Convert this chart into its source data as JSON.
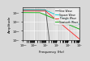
{
  "title": "",
  "xlabel": "Frequency (Hz)",
  "ylabel": "Amplitude",
  "xlim": [
    0.01,
    1000
  ],
  "ylim": [
    1e-07,
    1
  ],
  "background_color": "#d8d8d8",
  "grid_color": "#ffffff",
  "lines": [
    {
      "label": "Sine Wave",
      "color": "#555555",
      "style": "-",
      "flat_y": 0.35,
      "break_f": 1.0,
      "slope": -20
    },
    {
      "label": "Square Wave",
      "color": "#00cccc",
      "style": "-",
      "flat_y": 0.25,
      "break_f": 1.0,
      "slope": -1
    },
    {
      "label": "Triangle Wave",
      "color": "#ff2222",
      "style": "-",
      "flat_y": 0.18,
      "break_f": 1.0,
      "slope": -2
    },
    {
      "label": "Sawtooth Wave",
      "color": "#00aa00",
      "style": "-",
      "flat_y": 0.08,
      "break_f": 0.3,
      "slope": -1
    }
  ],
  "legend_fontsize": 2.2,
  "tick_fontsize": 2.5,
  "label_fontsize": 3.0,
  "linewidth": 0.6
}
